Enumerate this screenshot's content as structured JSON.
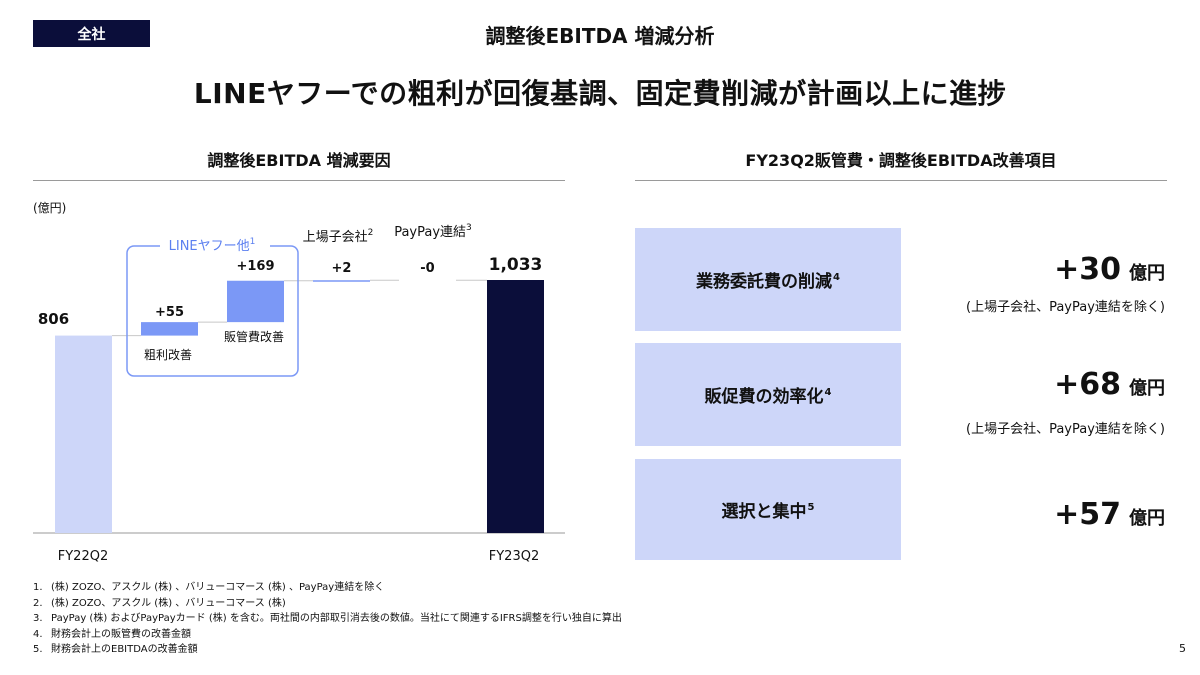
{
  "header": {
    "scope_badge": "全社",
    "title": "調整後EBITDA 増減分析",
    "headline": "LINEヤフーでの粗利が回復基調、固定費削減が計画以上に進捗"
  },
  "left_section": {
    "title": "調整後EBITDA 増減要因"
  },
  "right_section": {
    "title": "FY23Q2販管費・調整後EBITDA改善項目"
  },
  "chart_data": {
    "type": "bar",
    "subtype": "waterfall",
    "title": "調整後EBITDA 増減要因",
    "unit_label": "(億円)",
    "group_label": "LINEヤフー他",
    "group_label_sup": "1",
    "categories": [
      "FY22Q2",
      "粗利改善",
      "販管費改善",
      "上場子会社",
      "PayPay連結",
      "FY23Q2"
    ],
    "category_sups": [
      "",
      "",
      "",
      "2",
      "3",
      ""
    ],
    "values": [
      806,
      55,
      169,
      2,
      0,
      1033
    ],
    "data_labels": [
      "806",
      "+55",
      "+169",
      "+2",
      "-0",
      "1,033"
    ],
    "kinds": [
      "total",
      "delta",
      "delta",
      "delta",
      "delta",
      "total"
    ],
    "ylim": [
      0,
      1150
    ],
    "colors": {
      "start": "#cdd6f9",
      "delta": "#7b98f6",
      "end": "#0b0e3a",
      "group_border": "#7b98f6",
      "connector": "#c8c8c8"
    }
  },
  "improvement_items": [
    {
      "label": "業務委託費の削減",
      "sup": "4",
      "value": "+30",
      "unit": "億円",
      "note": "(上場子会社、PayPay連結を除く)"
    },
    {
      "label": "販促費の効率化",
      "sup": "4",
      "value": "+68",
      "unit": "億円",
      "note": "(上場子会社、PayPay連結を除く)"
    },
    {
      "label": "選択と集中",
      "sup": "5",
      "value": "+57",
      "unit": "億円",
      "note": ""
    }
  ],
  "footnotes": [
    {
      "n": "1.",
      "text": "(株) ZOZO、アスクル (株) 、バリューコマース (株) 、PayPay連結を除く"
    },
    {
      "n": "2.",
      "text": "(株) ZOZO、アスクル (株) 、バリューコマース (株)"
    },
    {
      "n": "3.",
      "text": "PayPay (株) およびPayPayカード (株) を含む。両社間の内部取引消去後の数値。当社にて関連するIFRS調整を行い独自に算出"
    },
    {
      "n": "4.",
      "text": "財務会計上の販管費の改善金額"
    },
    {
      "n": "5.",
      "text": "財務会計上のEBITDAの改善金額"
    }
  ],
  "page_number": "5"
}
